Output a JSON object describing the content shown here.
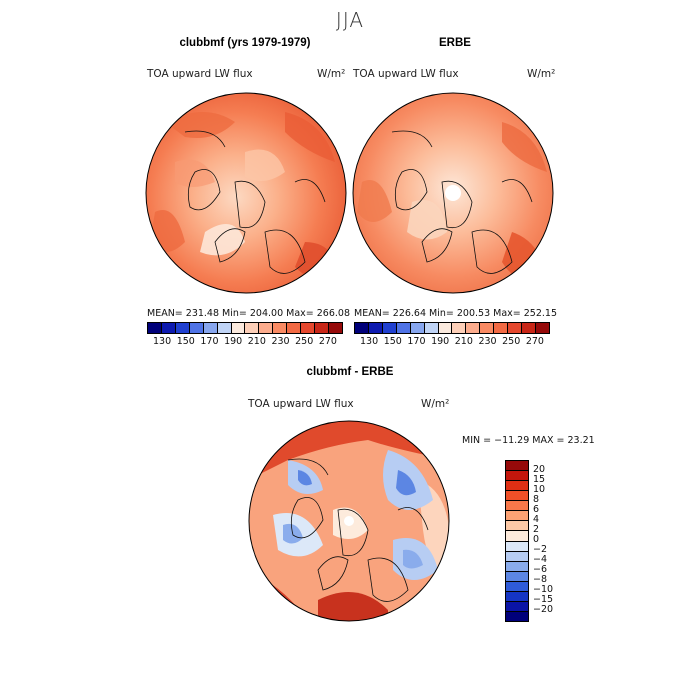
{
  "season": "JJA",
  "panels": [
    {
      "title": "clubbmf (yrs 1979-1979)",
      "subtitle": "TOA upward LW flux",
      "units": "W/m²",
      "stats": "MEAN= 231.48   Min= 204.00   Max= 266.08"
    },
    {
      "title": "ERBE",
      "subtitle": "TOA upward LW flux",
      "units": "W/m²",
      "stats": "MEAN= 226.64   Min= 200.53   Max= 252.15"
    }
  ],
  "diff_panel": {
    "title": "clubbmf - ERBE",
    "subtitle": "TOA upward LW flux",
    "units": "W/m²",
    "stats": "MIN = −11.29  MAX =  23.21"
  },
  "colorbar_main": {
    "colors": [
      "#00007a",
      "#0d1ab0",
      "#2040d0",
      "#4f73e6",
      "#87a6ee",
      "#c0d4f6",
      "#fbeade",
      "#fdcfb8",
      "#fcac8d",
      "#f98a63",
      "#f26a44",
      "#e5482e",
      "#c82617",
      "#960a0a"
    ],
    "labels": [
      "130",
      "150",
      "170",
      "190",
      "210",
      "230",
      "250",
      "270"
    ]
  },
  "colorbar_diff": {
    "colors": [
      "#960a0a",
      "#c4160c",
      "#df2f14",
      "#f05028",
      "#f8784a",
      "#fca274",
      "#fdc9a6",
      "#fdebdc",
      "#dce8f8",
      "#b7cdf3",
      "#8aacec",
      "#5c86e3",
      "#2f5bd8",
      "#1535c4",
      "#0a14a6",
      "#00007a"
    ],
    "labels": [
      "20",
      "15",
      "10",
      "8",
      "6",
      "4",
      "2",
      "0",
      "−2",
      "−4",
      "−6",
      "−8",
      "−10",
      "−15",
      "−20"
    ]
  }
}
